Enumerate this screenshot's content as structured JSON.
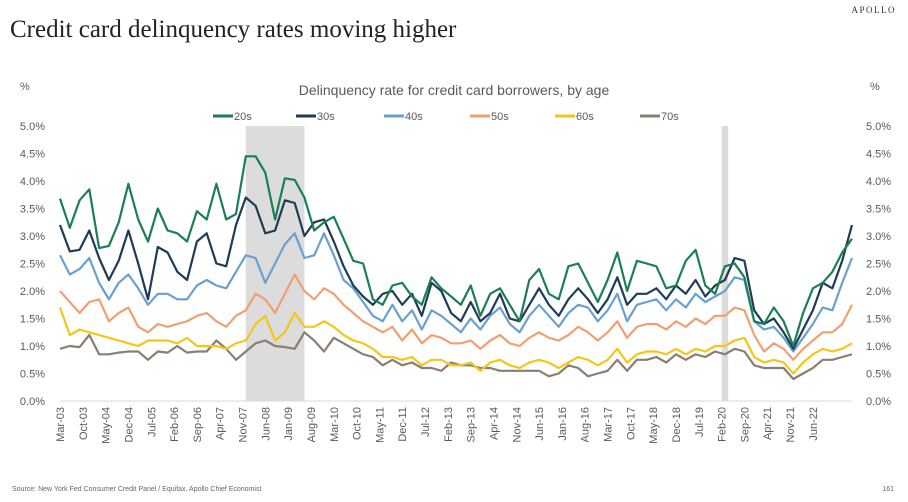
{
  "header": {
    "title": "Credit card delinquency rates moving higher",
    "brand": "APOLLO"
  },
  "footer": {
    "source": "Source: New York Fed Consumer Credit Panel / Equifax, Apollo Chief Economist",
    "page": "161"
  },
  "chart_data": {
    "type": "line",
    "title": "Delinquency rate for credit card borrowers, by age",
    "ylabel_left": "%",
    "ylabel_right": "%",
    "ylim": [
      0,
      5
    ],
    "yticks": [
      "0.0%",
      "0.5%",
      "1.0%",
      "1.5%",
      "2.0%",
      "2.5%",
      "3.0%",
      "3.5%",
      "4.0%",
      "4.5%",
      "5.0%"
    ],
    "x_tick_labels": [
      "Mar-03",
      "Oct-03",
      "May-04",
      "Dec-04",
      "Jul-05",
      "Feb-06",
      "Sep-06",
      "Apr-07",
      "Nov-07",
      "Jun-08",
      "Jan-09",
      "Aug-09",
      "Mar-10",
      "Oct-10",
      "May-11",
      "Dec-11",
      "Jul-12",
      "Feb-13",
      "Sep-13",
      "Apr-14",
      "Nov-14",
      "Jun-15",
      "Jan-16",
      "Aug-16",
      "Mar-17",
      "Oct-17",
      "May-18",
      "Dec-18",
      "Jul-19",
      "Feb-20",
      "Sep-20",
      "Apr-21",
      "Nov-21",
      "Jun-22"
    ],
    "recessions": [
      {
        "start": "Dec-07",
        "end": "Jun-09"
      },
      {
        "start": "Feb-20",
        "end": "Apr-20"
      }
    ],
    "series": [
      {
        "name": "20s",
        "color": "#1a7f55",
        "values": [
          3.68,
          3.15,
          3.65,
          3.85,
          2.78,
          2.82,
          3.25,
          3.95,
          3.3,
          2.9,
          3.5,
          3.1,
          3.05,
          2.9,
          3.45,
          3.3,
          3.95,
          3.3,
          3.4,
          4.45,
          4.45,
          4.15,
          3.3,
          4.05,
          4.02,
          3.7,
          3.1,
          3.25,
          3.35,
          2.95,
          2.55,
          2.5,
          1.85,
          1.75,
          2.1,
          2.15,
          1.9,
          1.75,
          2.25,
          2.05,
          1.9,
          1.75,
          2.1,
          1.55,
          1.95,
          2.05,
          1.75,
          1.45,
          2.2,
          2.4,
          1.95,
          1.85,
          2.45,
          2.5,
          2.15,
          1.8,
          2.2,
          2.7,
          2.0,
          2.55,
          2.5,
          2.45,
          2.05,
          2.1,
          2.55,
          2.75,
          2.1,
          1.95,
          2.45,
          2.5,
          2.25,
          1.45,
          1.4,
          1.7,
          1.45,
          1.0,
          1.6,
          2.05,
          2.15,
          2.35,
          2.7,
          2.95
        ]
      },
      {
        "name": "30s",
        "color": "#1f3b57",
        "values": [
          3.2,
          2.72,
          2.75,
          3.1,
          2.6,
          2.2,
          2.55,
          3.1,
          2.5,
          1.85,
          2.8,
          2.7,
          2.35,
          2.2,
          2.9,
          3.05,
          2.5,
          2.45,
          3.2,
          3.7,
          3.55,
          3.05,
          3.1,
          3.65,
          3.6,
          3.0,
          3.25,
          3.3,
          2.9,
          2.45,
          2.1,
          1.9,
          1.75,
          1.95,
          2.0,
          1.75,
          1.95,
          1.55,
          2.15,
          2.0,
          1.6,
          1.45,
          1.8,
          1.45,
          1.6,
          1.95,
          1.5,
          1.45,
          1.75,
          2.05,
          1.75,
          1.55,
          1.85,
          2.05,
          1.85,
          1.6,
          1.85,
          2.25,
          1.75,
          1.95,
          1.95,
          2.05,
          1.85,
          2.1,
          1.95,
          2.2,
          1.9,
          2.1,
          2.2,
          2.6,
          2.55,
          1.65,
          1.4,
          1.5,
          1.25,
          0.95,
          1.3,
          1.65,
          2.15,
          2.05,
          2.55,
          3.2
        ]
      },
      {
        "name": "40s",
        "color": "#6aa0d0",
        "values": [
          2.65,
          2.3,
          2.4,
          2.6,
          2.15,
          1.85,
          2.15,
          2.3,
          2.05,
          1.75,
          1.95,
          1.95,
          1.85,
          1.85,
          2.1,
          2.2,
          2.1,
          2.05,
          2.35,
          2.65,
          2.6,
          2.15,
          2.5,
          2.85,
          3.05,
          2.6,
          2.65,
          3.05,
          2.65,
          2.2,
          2.05,
          1.8,
          1.55,
          1.45,
          1.75,
          1.45,
          1.65,
          1.3,
          1.65,
          1.55,
          1.4,
          1.25,
          1.5,
          1.3,
          1.55,
          1.7,
          1.4,
          1.25,
          1.55,
          1.75,
          1.55,
          1.35,
          1.6,
          1.75,
          1.7,
          1.45,
          1.65,
          1.95,
          1.45,
          1.75,
          1.8,
          1.85,
          1.65,
          1.85,
          1.7,
          1.95,
          1.8,
          1.9,
          2.0,
          2.25,
          2.2,
          1.45,
          1.3,
          1.35,
          1.15,
          0.9,
          1.15,
          1.4,
          1.7,
          1.65,
          2.15,
          2.6
        ]
      },
      {
        "name": "50s",
        "color": "#f0a070",
        "values": [
          2.0,
          1.8,
          1.6,
          1.8,
          1.85,
          1.45,
          1.6,
          1.7,
          1.35,
          1.25,
          1.4,
          1.35,
          1.4,
          1.45,
          1.55,
          1.6,
          1.45,
          1.35,
          1.55,
          1.65,
          1.95,
          1.85,
          1.6,
          1.95,
          2.3,
          2.0,
          1.85,
          2.05,
          1.95,
          1.75,
          1.6,
          1.45,
          1.35,
          1.25,
          1.35,
          1.1,
          1.3,
          1.05,
          1.2,
          1.15,
          1.05,
          1.05,
          1.1,
          0.95,
          1.1,
          1.2,
          1.05,
          1.0,
          1.15,
          1.25,
          1.15,
          1.1,
          1.2,
          1.35,
          1.25,
          1.1,
          1.25,
          1.45,
          1.15,
          1.35,
          1.4,
          1.4,
          1.3,
          1.45,
          1.35,
          1.5,
          1.4,
          1.55,
          1.55,
          1.7,
          1.65,
          1.2,
          0.9,
          1.05,
          0.95,
          0.75,
          0.95,
          1.1,
          1.25,
          1.25,
          1.4,
          1.75
        ]
      },
      {
        "name": "60s",
        "color": "#f5c518",
        "values": [
          1.7,
          1.2,
          1.3,
          1.25,
          1.2,
          1.15,
          1.1,
          1.05,
          1.0,
          1.1,
          1.1,
          1.1,
          1.05,
          1.15,
          1.0,
          1.0,
          1.0,
          0.95,
          1.05,
          1.1,
          1.4,
          1.55,
          1.1,
          1.25,
          1.6,
          1.35,
          1.35,
          1.45,
          1.35,
          1.2,
          1.1,
          1.05,
          0.95,
          0.8,
          0.8,
          0.75,
          0.8,
          0.65,
          0.75,
          0.75,
          0.65,
          0.65,
          0.7,
          0.55,
          0.7,
          0.75,
          0.65,
          0.6,
          0.7,
          0.75,
          0.7,
          0.6,
          0.7,
          0.8,
          0.75,
          0.65,
          0.75,
          0.95,
          0.7,
          0.85,
          0.9,
          0.9,
          0.85,
          0.95,
          0.85,
          0.95,
          0.9,
          1.0,
          1.0,
          1.1,
          1.15,
          0.8,
          0.7,
          0.75,
          0.7,
          0.5,
          0.7,
          0.85,
          0.95,
          0.9,
          0.95,
          1.05
        ]
      },
      {
        "name": "70s",
        "color": "#8a7d72",
        "values": [
          0.95,
          1.0,
          0.98,
          1.2,
          0.85,
          0.85,
          0.88,
          0.9,
          0.9,
          0.75,
          0.9,
          0.88,
          1.0,
          0.88,
          0.9,
          0.9,
          1.1,
          0.95,
          0.75,
          0.9,
          1.05,
          1.1,
          1.0,
          0.98,
          0.95,
          1.25,
          1.1,
          0.9,
          1.15,
          1.05,
          0.95,
          0.85,
          0.8,
          0.65,
          0.75,
          0.65,
          0.7,
          0.6,
          0.6,
          0.55,
          0.7,
          0.65,
          0.65,
          0.6,
          0.6,
          0.55,
          0.55,
          0.55,
          0.55,
          0.55,
          0.45,
          0.5,
          0.65,
          0.6,
          0.45,
          0.5,
          0.55,
          0.75,
          0.55,
          0.75,
          0.75,
          0.8,
          0.7,
          0.85,
          0.75,
          0.85,
          0.8,
          0.9,
          0.85,
          0.95,
          0.9,
          0.65,
          0.6,
          0.6,
          0.6,
          0.4,
          0.5,
          0.6,
          0.75,
          0.75,
          0.8,
          0.85
        ]
      }
    ]
  }
}
